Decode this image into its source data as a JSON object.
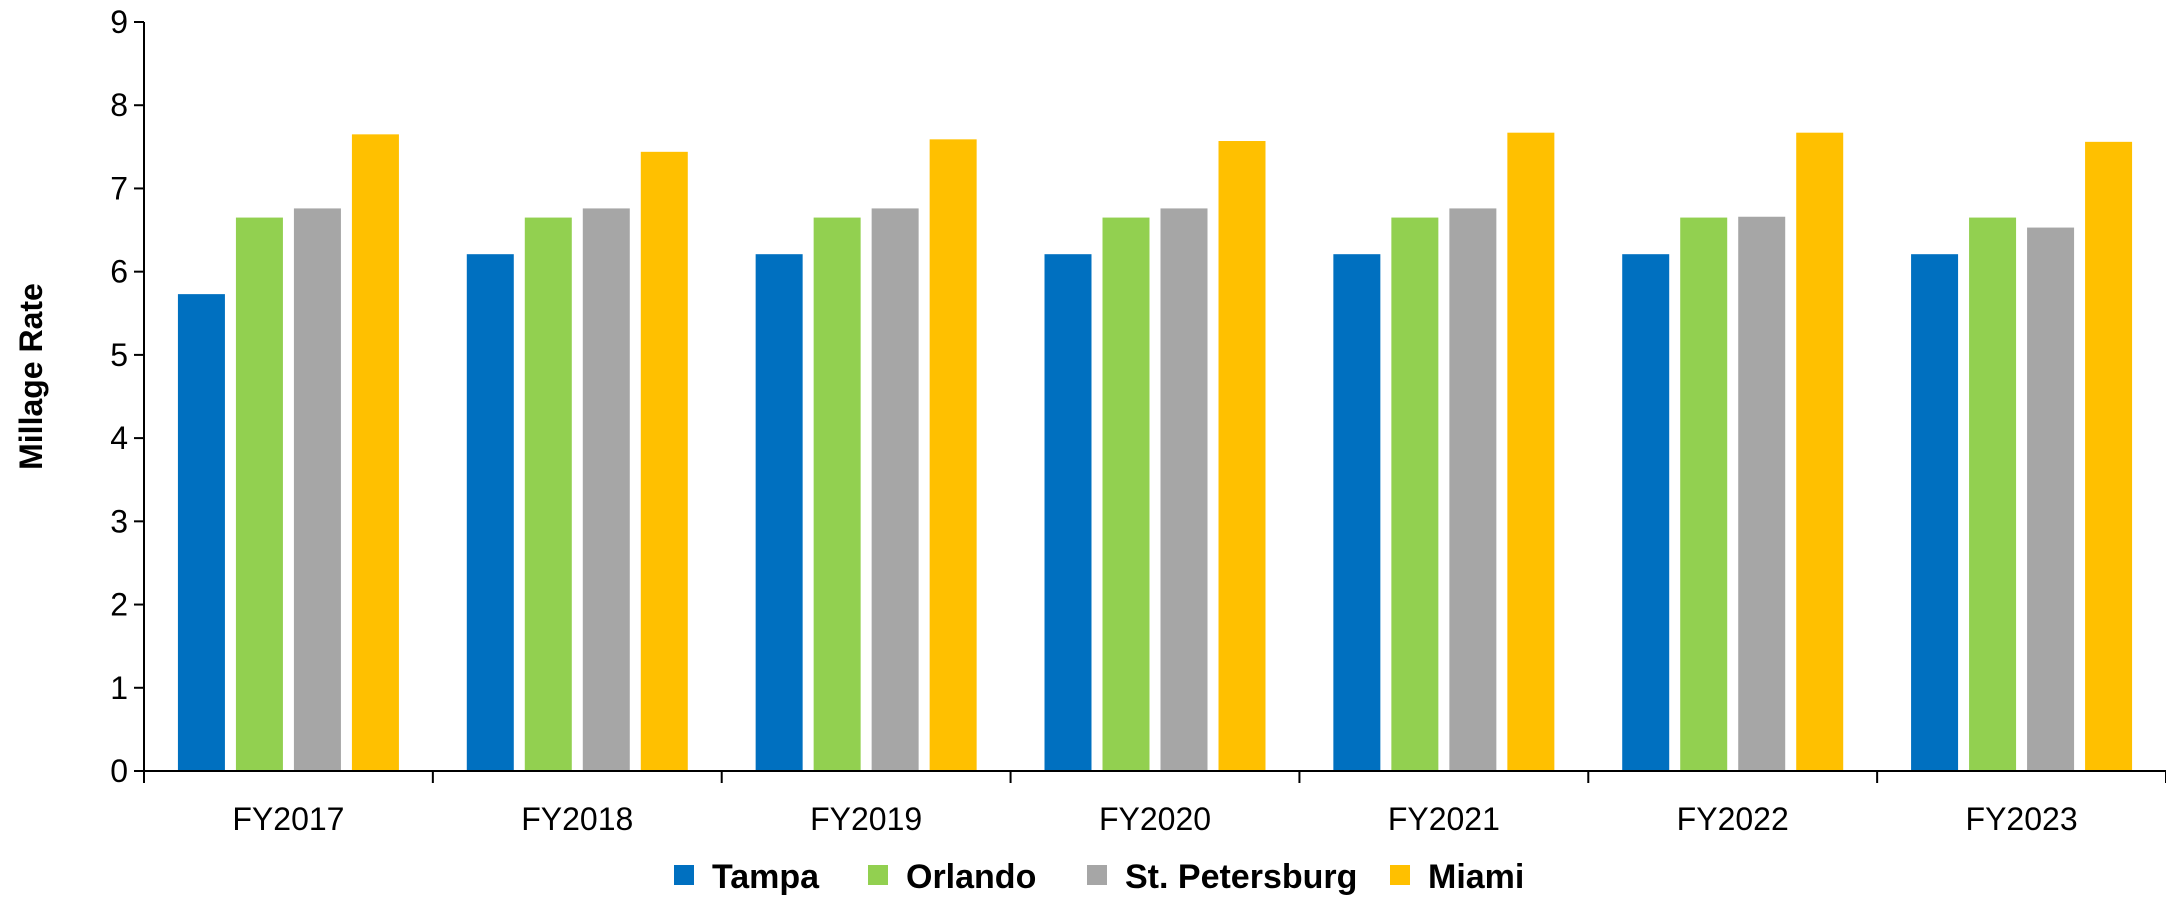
{
  "chart_data": {
    "type": "bar",
    "ylabel": "Millage Rate",
    "xlabel": "",
    "ylim": [
      0,
      9
    ],
    "yticks": [
      0,
      1,
      2,
      3,
      4,
      5,
      6,
      7,
      8,
      9
    ],
    "grid": false,
    "legend_position": "bottom",
    "categories": [
      "FY2017",
      "FY2018",
      "FY2019",
      "FY2020",
      "FY2021",
      "FY2022",
      "FY2023"
    ],
    "series": [
      {
        "name": "Tampa",
        "color": "#0070C0",
        "values": [
          5.73,
          6.21,
          6.21,
          6.21,
          6.21,
          6.21,
          6.21
        ]
      },
      {
        "name": "Orlando",
        "color": "#92D050",
        "values": [
          6.65,
          6.65,
          6.65,
          6.65,
          6.65,
          6.65,
          6.65
        ]
      },
      {
        "name": "St. Petersburg",
        "color": "#A6A6A6",
        "values": [
          6.76,
          6.76,
          6.76,
          6.76,
          6.76,
          6.66,
          6.53
        ]
      },
      {
        "name": "Miami",
        "color": "#FFC000",
        "values": [
          7.65,
          7.44,
          7.59,
          7.57,
          7.67,
          7.67,
          7.56
        ]
      }
    ]
  }
}
